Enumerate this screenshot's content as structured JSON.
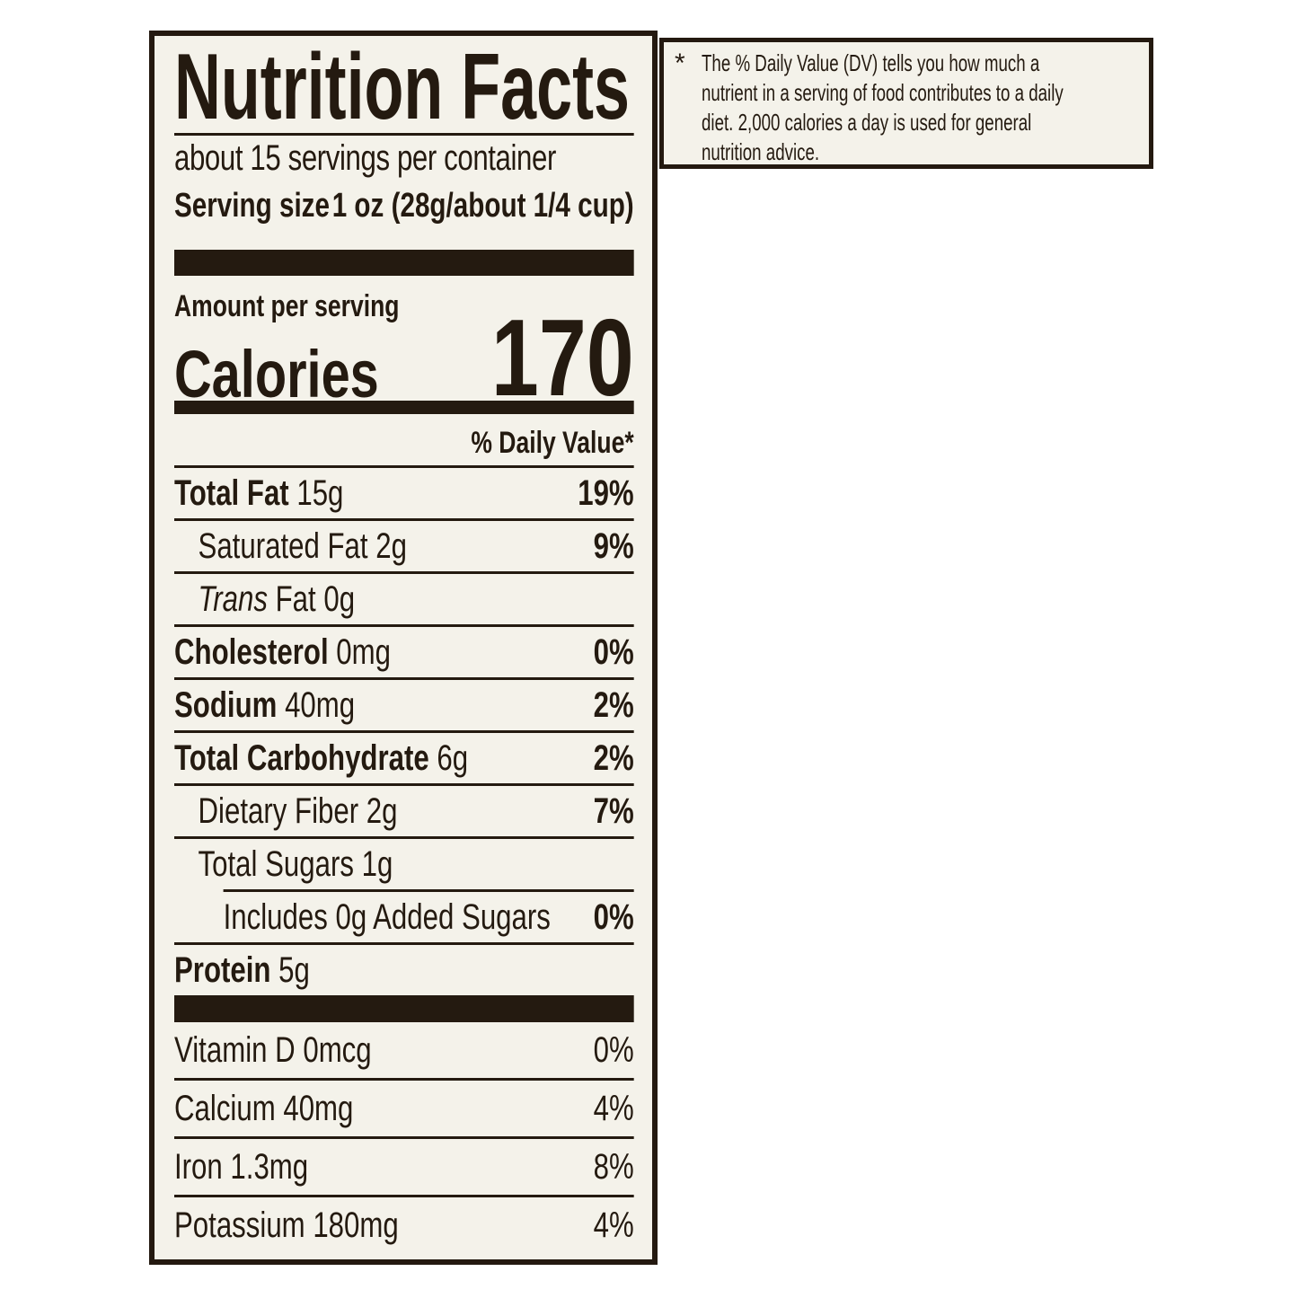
{
  "colors": {
    "ink": "#241a10",
    "panel_background": "#f4f2ea",
    "page_background": "#ffffff"
  },
  "label": {
    "title": "Nutrition Facts",
    "servings_line": "about 15 servings per container",
    "serving_size": {
      "label": "Serving size",
      "value": "1 oz (28g/about 1/4 cup)"
    },
    "amount_per_serving": "Amount per serving",
    "calories": {
      "label": "Calories",
      "value": "170"
    },
    "daily_value_header": "% Daily Value*",
    "nutrient_rows": [
      {
        "name_bold": "Total Fat",
        "amount": " 15g",
        "dv": "19%"
      },
      {
        "name": "Saturated Fat 2g",
        "dv": "9%"
      },
      {
        "name_italic": "Trans",
        "name": " Fat 0g",
        "dv": ""
      },
      {
        "name_bold": "Cholesterol",
        "amount": " 0mg",
        "dv": "0%"
      },
      {
        "name_bold": "Sodium",
        "amount": " 40mg",
        "dv": "2%"
      },
      {
        "name_bold": "Total Carbohydrate",
        "amount": " 6g",
        "dv": "2%"
      },
      {
        "name": "Dietary Fiber 2g",
        "dv": "7%"
      },
      {
        "name": "Total Sugars 1g",
        "dv": ""
      },
      {
        "name": "Includes 0g Added Sugars",
        "dv": "0%"
      },
      {
        "name_bold": "Protein",
        "amount": " 5g",
        "dv": ""
      }
    ],
    "micronutrient_rows": [
      {
        "name": "Vitamin D 0mcg",
        "dv": "0%"
      },
      {
        "name": "Calcium 40mg",
        "dv": "4%"
      },
      {
        "name": "Iron 1.3mg",
        "dv": "8%"
      },
      {
        "name": "Potassium 180mg",
        "dv": "4%"
      }
    ]
  },
  "footnote": {
    "marker": "*",
    "lines": [
      "The % Daily Value (DV) tells you how much a",
      "nutrient in a serving of food contributes to a daily",
      "diet. 2,000 calories a day is used for general",
      "nutrition advice."
    ]
  }
}
